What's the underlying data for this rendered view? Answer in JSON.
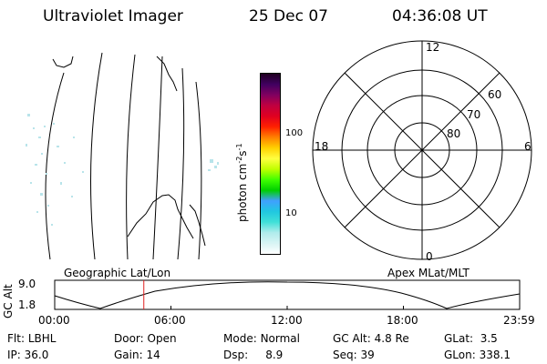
{
  "header": {
    "instrument": "Ultraviolet Imager",
    "date": "25 Dec 07",
    "time": "04:36:08 UT"
  },
  "colorbar": {
    "label": "photon cm",
    "label_sup1": "-2",
    "label_s": "s",
    "label_sup2": "-1",
    "ticks": [
      "100",
      "10"
    ],
    "colors": [
      "#ffffff",
      "#d8f4f4",
      "#b0ecec",
      "#40e0d8",
      "#20c8e0",
      "#40a0ff",
      "#00d000",
      "#40ff00",
      "#c0ff00",
      "#ffff40",
      "#ffd000",
      "#ff8000",
      "#ff2000",
      "#e00020",
      "#c00040",
      "#800060",
      "#400060",
      "#200020"
    ]
  },
  "polar_plot": {
    "mlt_labels": {
      "top": "12",
      "bottom": "0",
      "left": "18",
      "right": "6"
    },
    "lat_labels": [
      "60",
      "70",
      "80"
    ]
  },
  "map_labels": {
    "left": "Geographic Lat/Lon",
    "right": "Apex MLat/MLT"
  },
  "altitude_plot": {
    "ylabel": "GC Alt",
    "ymax": "9.0",
    "ymin": "1.8",
    "xticks": [
      "00:00",
      "06:00",
      "12:00",
      "18:00",
      "23:59"
    ],
    "marker_hour": 4.6
  },
  "status": {
    "flt_label": "Flt:",
    "flt_value": "LBHL",
    "door_label": "Door:",
    "door_value": "Open",
    "mode_label": "Mode:",
    "mode_value": "Normal",
    "gcalt_label": "GC Alt:",
    "gcalt_value": "4.8 Re",
    "glat_label": "GLat:",
    "glat_value": "3.5",
    "ip_label": "IP:",
    "ip_value": "36.0",
    "gain_label": "Gain:",
    "gain_value": "14",
    "dsp_label": "Dsp:",
    "dsp_value": "8.9",
    "seq_label": "Seq:",
    "seq_value": "39",
    "glon_label": "GLon:",
    "glon_value": "338.1"
  }
}
